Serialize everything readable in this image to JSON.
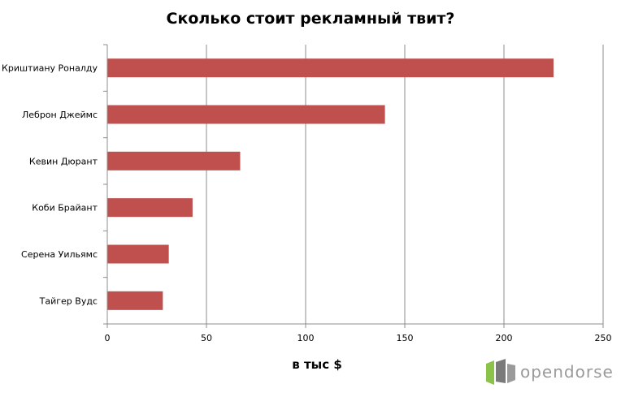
{
  "chart_data": {
    "type": "bar",
    "orientation": "horizontal",
    "title": "Сколько стоит рекламный твит?",
    "xlabel": "в тыс $",
    "ylabel": "",
    "categories": [
      "Криштиану Роналду",
      "Леброн Джеймс",
      "Кевин Дюрант",
      "Коби Брайант",
      "Серена Уильямс",
      "Тайгер Вудс"
    ],
    "values": [
      225,
      140,
      67,
      43,
      31,
      28
    ],
    "xlim": [
      0,
      250
    ],
    "xticks": [
      0,
      50,
      100,
      150,
      200,
      250
    ],
    "grid": true,
    "bar_color": "#c0504d"
  },
  "logo": {
    "text": "opendorse",
    "colors": [
      "#8bc34a",
      "#7a7a7a",
      "#9a9a9a"
    ]
  }
}
